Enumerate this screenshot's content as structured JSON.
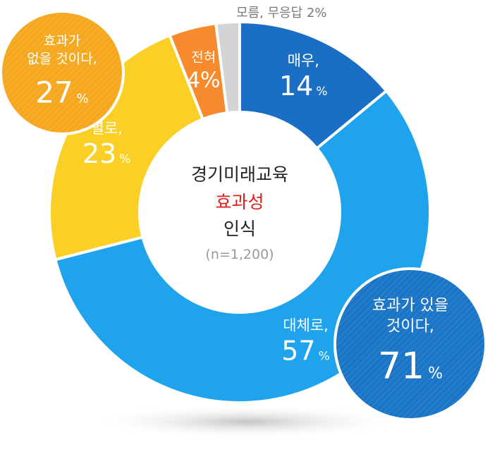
{
  "chart_data": {
    "type": "pie",
    "title": "경기미래교육",
    "title_highlight": "효과성",
    "title_suffix": "인식",
    "sample": "(n=1,200)",
    "slices": [
      {
        "label": "매우,",
        "value": 14,
        "color": "#1a6fc4"
      },
      {
        "label": "대체로,",
        "value": 57,
        "color": "#1ea3ec"
      },
      {
        "label": "별로,",
        "value": 23,
        "color": "#fbd026"
      },
      {
        "label": "전혀",
        "value": 4,
        "color": "#f78a2c"
      },
      {
        "label": "모름, 무응답 2%",
        "value": 2,
        "color": "#d4d4d4"
      }
    ],
    "groups": [
      {
        "label_lines": [
          "효과가",
          "없을 것이다,"
        ],
        "value": 27,
        "color": "#f5a81f"
      },
      {
        "label_lines": [
          "효과가 있을",
          "것이다,"
        ],
        "value": 71,
        "color": "#1a75c7"
      }
    ],
    "colors": {
      "highlight": "#e0201c",
      "sample": "#999999",
      "title": "#222222"
    }
  }
}
